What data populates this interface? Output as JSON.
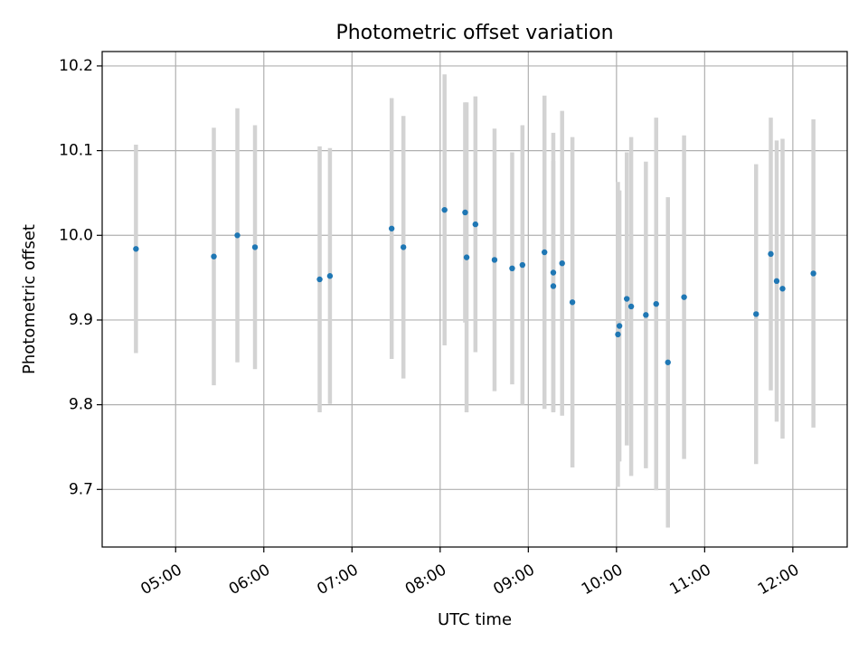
{
  "chart_data": {
    "type": "scatter",
    "title": "Photometric offset variation",
    "xlabel": "UTC time",
    "ylabel": "Photometric offset",
    "xlim": [
      "04:10",
      "12:37"
    ],
    "ylim": [
      9.632,
      10.217
    ],
    "grid": true,
    "colors": {
      "point": "#1f77b4",
      "errorbar": "#d3d3d3",
      "grid": "#b0b0b0",
      "axes": "#000000"
    },
    "x_ticks": [
      "05:00",
      "06:00",
      "07:00",
      "08:00",
      "09:00",
      "10:00",
      "11:00",
      "12:00"
    ],
    "y_ticks": [
      9.7,
      9.8,
      9.9,
      10.0,
      10.1,
      10.2
    ],
    "y_tick_labels": [
      "9.7",
      "9.8",
      "9.9",
      "10.0",
      "10.1",
      "10.2"
    ],
    "points": [
      {
        "time": "04:33",
        "y": 9.984,
        "err": 0.123
      },
      {
        "time": "05:26",
        "y": 9.975,
        "err": 0.152
      },
      {
        "time": "05:42",
        "y": 10.0,
        "err": 0.15
      },
      {
        "time": "05:54",
        "y": 9.986,
        "err": 0.144
      },
      {
        "time": "06:38",
        "y": 9.948,
        "err": 0.157
      },
      {
        "time": "06:45",
        "y": 9.952,
        "err": 0.151
      },
      {
        "time": "07:27",
        "y": 10.008,
        "err": 0.154
      },
      {
        "time": "07:35",
        "y": 9.986,
        "err": 0.155
      },
      {
        "time": "08:03",
        "y": 10.03,
        "err": 0.16
      },
      {
        "time": "08:17",
        "y": 10.027,
        "err": 0.13
      },
      {
        "time": "08:18",
        "y": 9.974,
        "err": 0.183
      },
      {
        "time": "08:24",
        "y": 10.013,
        "err": 0.151
      },
      {
        "time": "08:37",
        "y": 9.971,
        "err": 0.155
      },
      {
        "time": "08:49",
        "y": 9.961,
        "err": 0.137
      },
      {
        "time": "08:56",
        "y": 9.965,
        "err": 0.165
      },
      {
        "time": "09:11",
        "y": 9.98,
        "err": 0.185
      },
      {
        "time": "09:17",
        "y": 9.956,
        "err": 0.165
      },
      {
        "time": "09:17",
        "y": 9.94,
        "err": 0.148
      },
      {
        "time": "09:23",
        "y": 9.967,
        "err": 0.18
      },
      {
        "time": "09:30",
        "y": 9.921,
        "err": 0.195
      },
      {
        "time": "10:01",
        "y": 9.883,
        "err": 0.18
      },
      {
        "time": "10:02",
        "y": 9.893,
        "err": 0.16
      },
      {
        "time": "10:07",
        "y": 9.925,
        "err": 0.173
      },
      {
        "time": "10:10",
        "y": 9.916,
        "err": 0.2
      },
      {
        "time": "10:20",
        "y": 9.906,
        "err": 0.181
      },
      {
        "time": "10:27",
        "y": 9.919,
        "err": 0.22
      },
      {
        "time": "10:35",
        "y": 9.85,
        "err": 0.195
      },
      {
        "time": "10:46",
        "y": 9.927,
        "err": 0.191
      },
      {
        "time": "11:35",
        "y": 9.907,
        "err": 0.177
      },
      {
        "time": "11:45",
        "y": 9.978,
        "err": 0.161
      },
      {
        "time": "11:49",
        "y": 9.946,
        "err": 0.166
      },
      {
        "time": "11:53",
        "y": 9.937,
        "err": 0.177
      },
      {
        "time": "12:14",
        "y": 9.955,
        "err": 0.182
      }
    ]
  }
}
